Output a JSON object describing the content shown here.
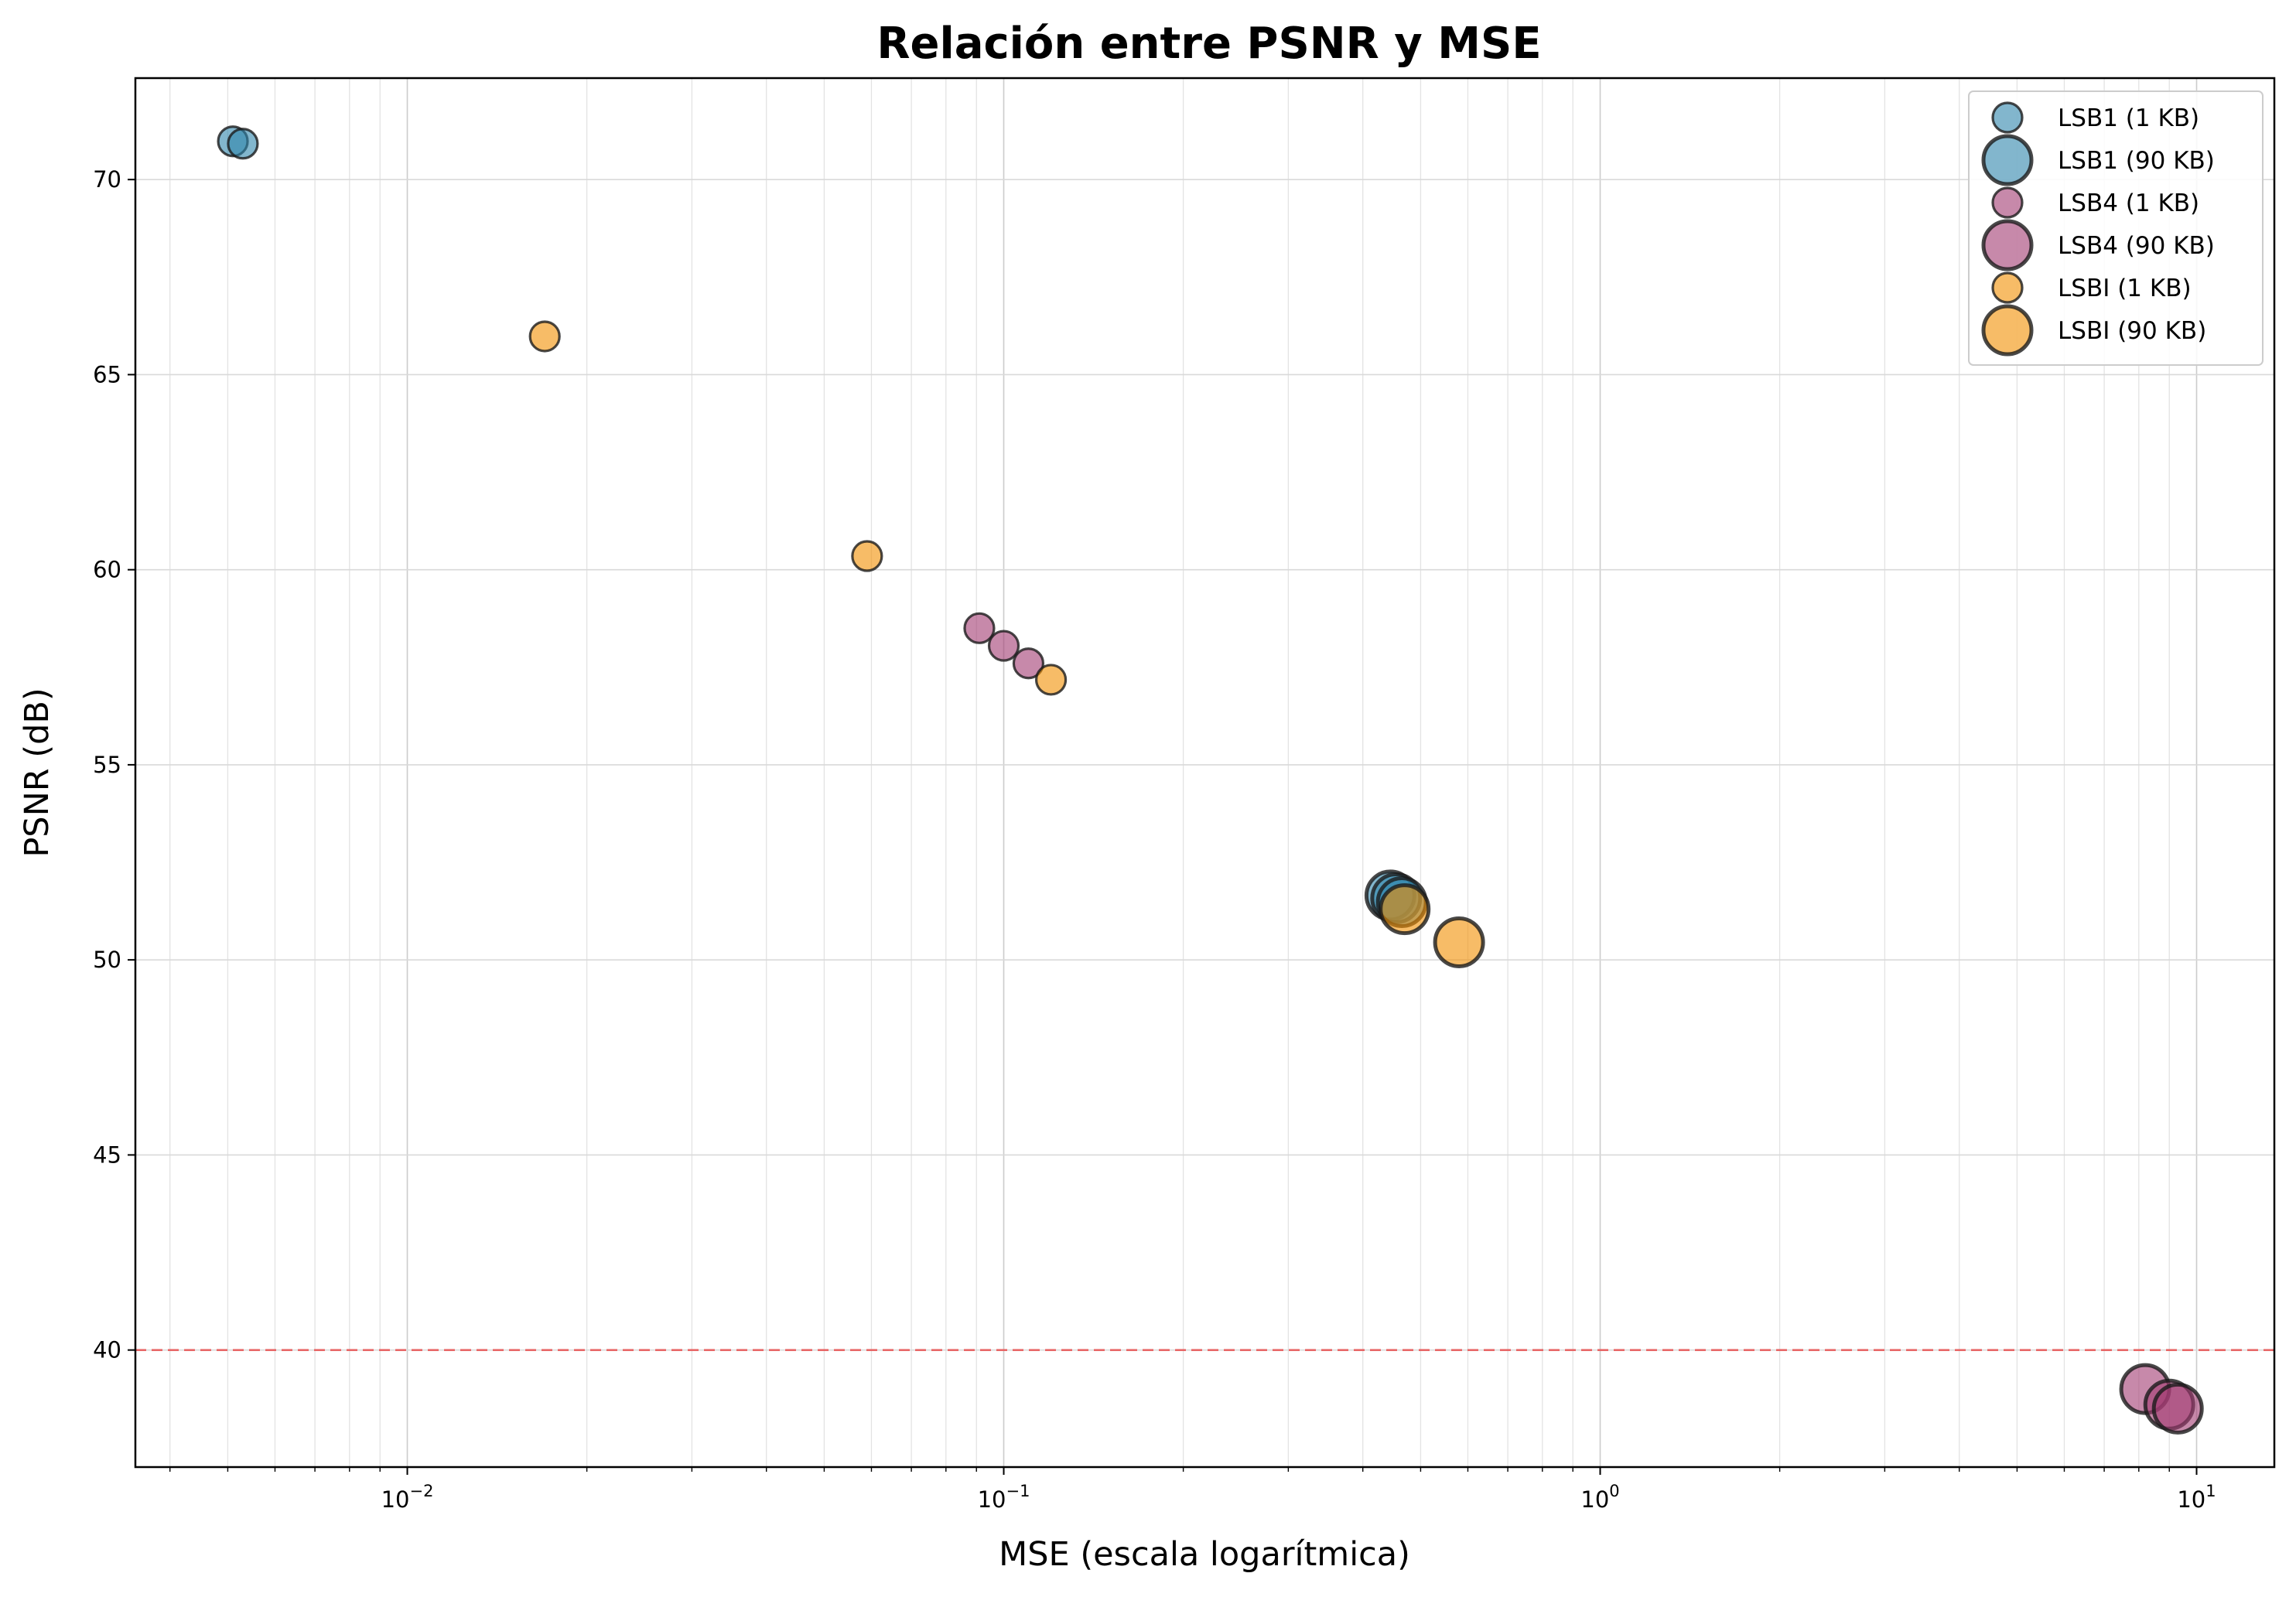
{
  "chart_data": {
    "type": "scatter",
    "title": "Relación entre PSNR y MSE",
    "xlabel": "MSE (escala logarítmica)",
    "ylabel": "PSNR (dB)",
    "xscale": "log",
    "xlim": [
      0.0035,
      13.5
    ],
    "ylim": [
      37.0,
      72.6
    ],
    "x_ticks": [
      {
        "value": 0.01,
        "base": "10",
        "exp": "−2"
      },
      {
        "value": 0.1,
        "base": "10",
        "exp": "−1"
      },
      {
        "value": 1,
        "base": "10",
        "exp": "0"
      },
      {
        "value": 10,
        "base": "10",
        "exp": "1"
      }
    ],
    "y_ticks": [
      40,
      45,
      50,
      55,
      60,
      65,
      70
    ],
    "grid": true,
    "legend_position": "top-right",
    "reference_line": {
      "y": 40,
      "color": "#e85a5a",
      "style": "dashed"
    },
    "series": [
      {
        "name": "LSB1 (1 KB)",
        "color": "#2e86ab",
        "size": "small",
        "points": [
          [
            0.0051,
            70.98
          ],
          [
            0.0053,
            70.92
          ]
        ]
      },
      {
        "name": "LSB1 (90 KB)",
        "color": "#2e86ab",
        "size": "large",
        "points": [
          [
            0.445,
            51.65
          ],
          [
            0.455,
            51.58
          ],
          [
            0.465,
            51.48
          ]
        ]
      },
      {
        "name": "LSB4 (1 KB)",
        "color": "#a23b72",
        "size": "small",
        "points": [
          [
            0.091,
            58.5
          ],
          [
            0.1,
            58.05
          ],
          [
            0.11,
            57.6
          ]
        ]
      },
      {
        "name": "LSB4 (90 KB)",
        "color": "#a23b72",
        "size": "large",
        "points": [
          [
            8.2,
            39.0
          ],
          [
            9.0,
            38.6
          ],
          [
            9.3,
            38.5
          ]
        ]
      },
      {
        "name": "LSBI (1 KB)",
        "color": "#f18f01",
        "size": "small",
        "points": [
          [
            0.017,
            65.98
          ],
          [
            0.059,
            60.35
          ],
          [
            0.12,
            57.18
          ]
        ]
      },
      {
        "name": "LSBI (90 KB)",
        "color": "#f18f01",
        "size": "large",
        "points": [
          [
            0.47,
            51.3
          ],
          [
            0.58,
            50.45
          ]
        ]
      }
    ]
  }
}
